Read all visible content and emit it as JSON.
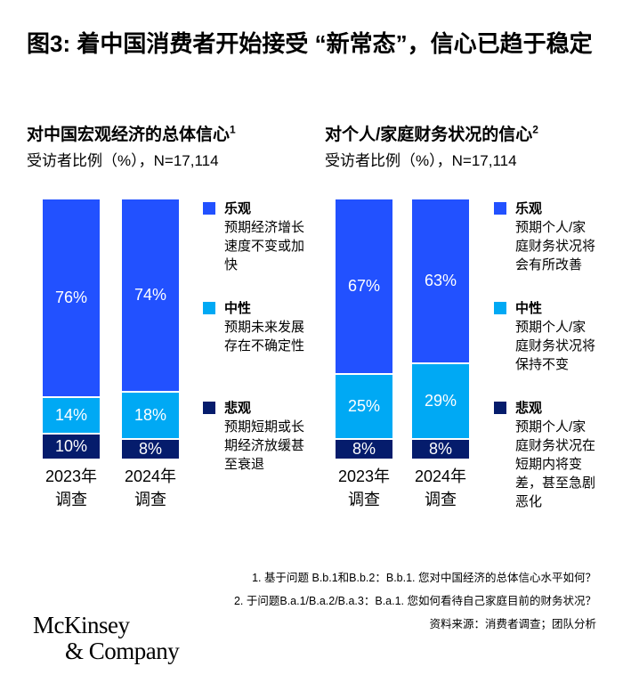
{
  "title": "图3: 着中国消费者开始接受 “新常态”，信心已趋于稳定",
  "colors": {
    "optimistic": "#2251ff",
    "neutral": "#00a9f4",
    "pessimistic": "#051c6c"
  },
  "chart_data": [
    {
      "type": "bar",
      "stacked": true,
      "title": "对中国宏观经济的总体信心",
      "title_sup": "1",
      "subtitle": "受访者比例（%），N=17,114",
      "categories": [
        "2023年\n调查",
        "2024年\n调查"
      ],
      "series": [
        {
          "name": "悲观",
          "values": [
            10,
            8
          ]
        },
        {
          "name": "中性",
          "values": [
            14,
            18
          ]
        },
        {
          "name": "乐观",
          "values": [
            76,
            74
          ]
        }
      ],
      "legend": [
        {
          "name": "乐观",
          "desc": "预期经济增长速度不变或加快"
        },
        {
          "name": "中性",
          "desc": "预期未来发展存在不确定性"
        },
        {
          "name": "悲观",
          "desc": "预期短期或长期经济放缓甚至衰退"
        }
      ],
      "ylim": [
        0,
        100
      ]
    },
    {
      "type": "bar",
      "stacked": true,
      "title": "对个人/家庭财务状况的信心",
      "title_sup": "2",
      "subtitle": "受访者比例（%），N=17,114",
      "categories": [
        "2023年\n调查",
        "2024年\n调查"
      ],
      "series": [
        {
          "name": "悲观",
          "values": [
            8,
            8
          ]
        },
        {
          "name": "中性",
          "values": [
            25,
            29
          ]
        },
        {
          "name": "乐观",
          "values": [
            67,
            63
          ]
        }
      ],
      "legend": [
        {
          "name": "乐观",
          "desc": "预期个人/家庭财务状况将会有所改善"
        },
        {
          "name": "中性",
          "desc": "预期个人/家庭财务状况将保持不变"
        },
        {
          "name": "悲观",
          "desc": "预期个人/家庭财务状况在短期内将变差，甚至急剧恶化"
        }
      ],
      "ylim": [
        0,
        100
      ]
    }
  ],
  "notes": [
    "1.   基于问题 B.b.1和B.b.2：B.b.1. 您对中国经济的总体信心水平如何？",
    "2.   于问题B.a.1/B.a.2/B.a.3：B.a.1. 您如何看待自己家庭目前的财务状况？"
  ],
  "source": "资料来源：消费者调查；团队分析",
  "logo": [
    "McKinsey",
    "& Company"
  ]
}
